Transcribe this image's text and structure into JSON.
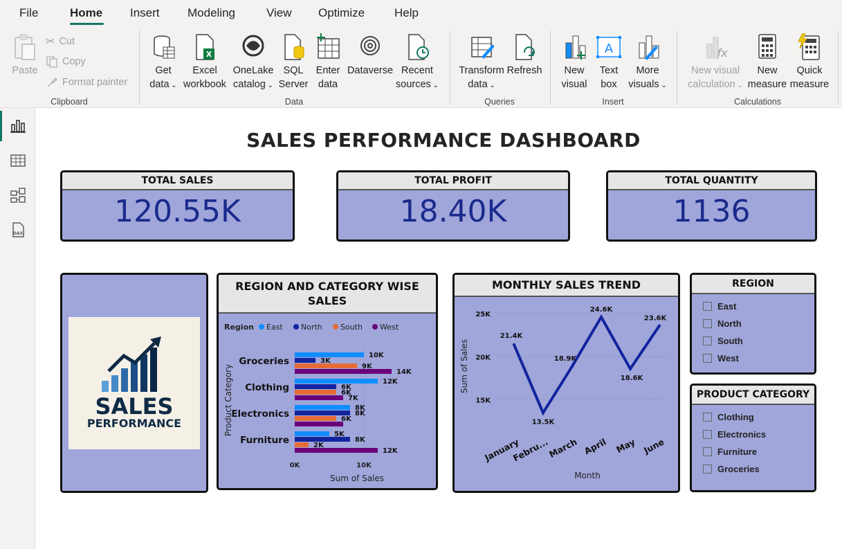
{
  "menu": {
    "items": [
      "File",
      "Home",
      "Insert",
      "Modeling",
      "View",
      "Optimize",
      "Help"
    ],
    "active": "Home"
  },
  "ribbon": {
    "clipboard": {
      "paste": "Paste",
      "cut": "Cut",
      "copy": "Copy",
      "format_painter": "Format painter",
      "label": "Clipboard"
    },
    "data": {
      "get_data_1": "Get",
      "get_data_2": "data",
      "excel_1": "Excel",
      "excel_2": "workbook",
      "onelake_1": "OneLake",
      "onelake_2": "catalog",
      "sql_1": "SQL",
      "sql_2": "Server",
      "enter_1": "Enter",
      "enter_2": "data",
      "dataverse": "Dataverse",
      "recent_1": "Recent",
      "recent_2": "sources",
      "label": "Data"
    },
    "queries": {
      "transform_1": "Transform",
      "transform_2": "data",
      "refresh": "Refresh",
      "label": "Queries"
    },
    "insert": {
      "new_visual_1": "New",
      "new_visual_2": "visual",
      "text_box_1": "Text",
      "text_box_2": "box",
      "more_visuals_1": "More",
      "more_visuals_2": "visuals",
      "label": "Insert"
    },
    "calculations": {
      "new_visual_calc_1": "New visual",
      "new_visual_calc_2": "calculation",
      "new_measure_1": "New",
      "new_measure_2": "measure",
      "quick_measure_1": "Quick",
      "quick_measure_2": "measure",
      "label": "Calculations"
    }
  },
  "dashboard": {
    "title": "SALES PERFORMANCE DASHBOARD",
    "kpis": [
      {
        "label": "TOTAL SALES",
        "value": "120.55K"
      },
      {
        "label": "TOTAL PROFIT",
        "value": "18.40K"
      },
      {
        "label": "TOTAL QUANTITY",
        "value": "1136"
      }
    ],
    "logo": {
      "line1": "SALES",
      "line2": "PERFORMANCE"
    },
    "region_slicer": {
      "title": "REGION",
      "items": [
        "East",
        "North",
        "South",
        "West"
      ]
    },
    "category_slicer": {
      "title": "PRODUCT CATEGORY",
      "items": [
        "Clothing",
        "Electronics",
        "Furniture",
        "Groceries"
      ]
    }
  },
  "colors": {
    "accent": "#117865",
    "card_bg": "#a0a6da",
    "kpi_text": "#1a2a8c",
    "east": "#118dff",
    "north": "#12239e",
    "south": "#e66c37",
    "west": "#6b007b",
    "line": "#12239e"
  },
  "chart_data": [
    {
      "type": "bar",
      "title": "REGION AND CATEGORY WISE SALES",
      "legend_title": "Region",
      "legend_position": "top-left",
      "categories": [
        "Groceries",
        "Clothing",
        "Electronics",
        "Furniture"
      ],
      "series": [
        {
          "name": "East",
          "values": [
            10000,
            12000,
            8000,
            5000
          ],
          "labels": [
            "10K",
            "12K",
            "8K",
            "5K"
          ]
        },
        {
          "name": "North",
          "values": [
            3000,
            6000,
            8000,
            8000
          ],
          "labels": [
            "3K",
            "6K",
            "8K",
            "8K"
          ]
        },
        {
          "name": "South",
          "values": [
            9000,
            6000,
            6000,
            2000
          ],
          "labels": [
            "9K",
            "6K",
            "6K",
            "2K"
          ]
        },
        {
          "name": "West",
          "values": [
            14000,
            7000,
            7000,
            12000
          ],
          "labels": [
            "14K",
            "7K",
            "",
            "12K"
          ]
        }
      ],
      "xlabel": "Sum of Sales",
      "ylabel": "Product Category",
      "xlim": [
        0,
        15000
      ],
      "xticks": [
        "0K",
        "10K"
      ],
      "orientation": "horizontal"
    },
    {
      "type": "line",
      "title": "MONTHLY SALES TREND",
      "x": [
        "January",
        "Febru...",
        "March",
        "April",
        "May",
        "June"
      ],
      "values": [
        21400,
        13500,
        18900,
        24600,
        18600,
        23600
      ],
      "labels": [
        "21.4K",
        "13.5K",
        "18.9K",
        "24.6K",
        "18.6K",
        "23.6K"
      ],
      "xlabel": "Month",
      "ylabel": "Sum of Sales",
      "ylim": [
        12000,
        25000
      ],
      "yticks": [
        "25K",
        "20K",
        "15K"
      ],
      "grid": true
    }
  ]
}
